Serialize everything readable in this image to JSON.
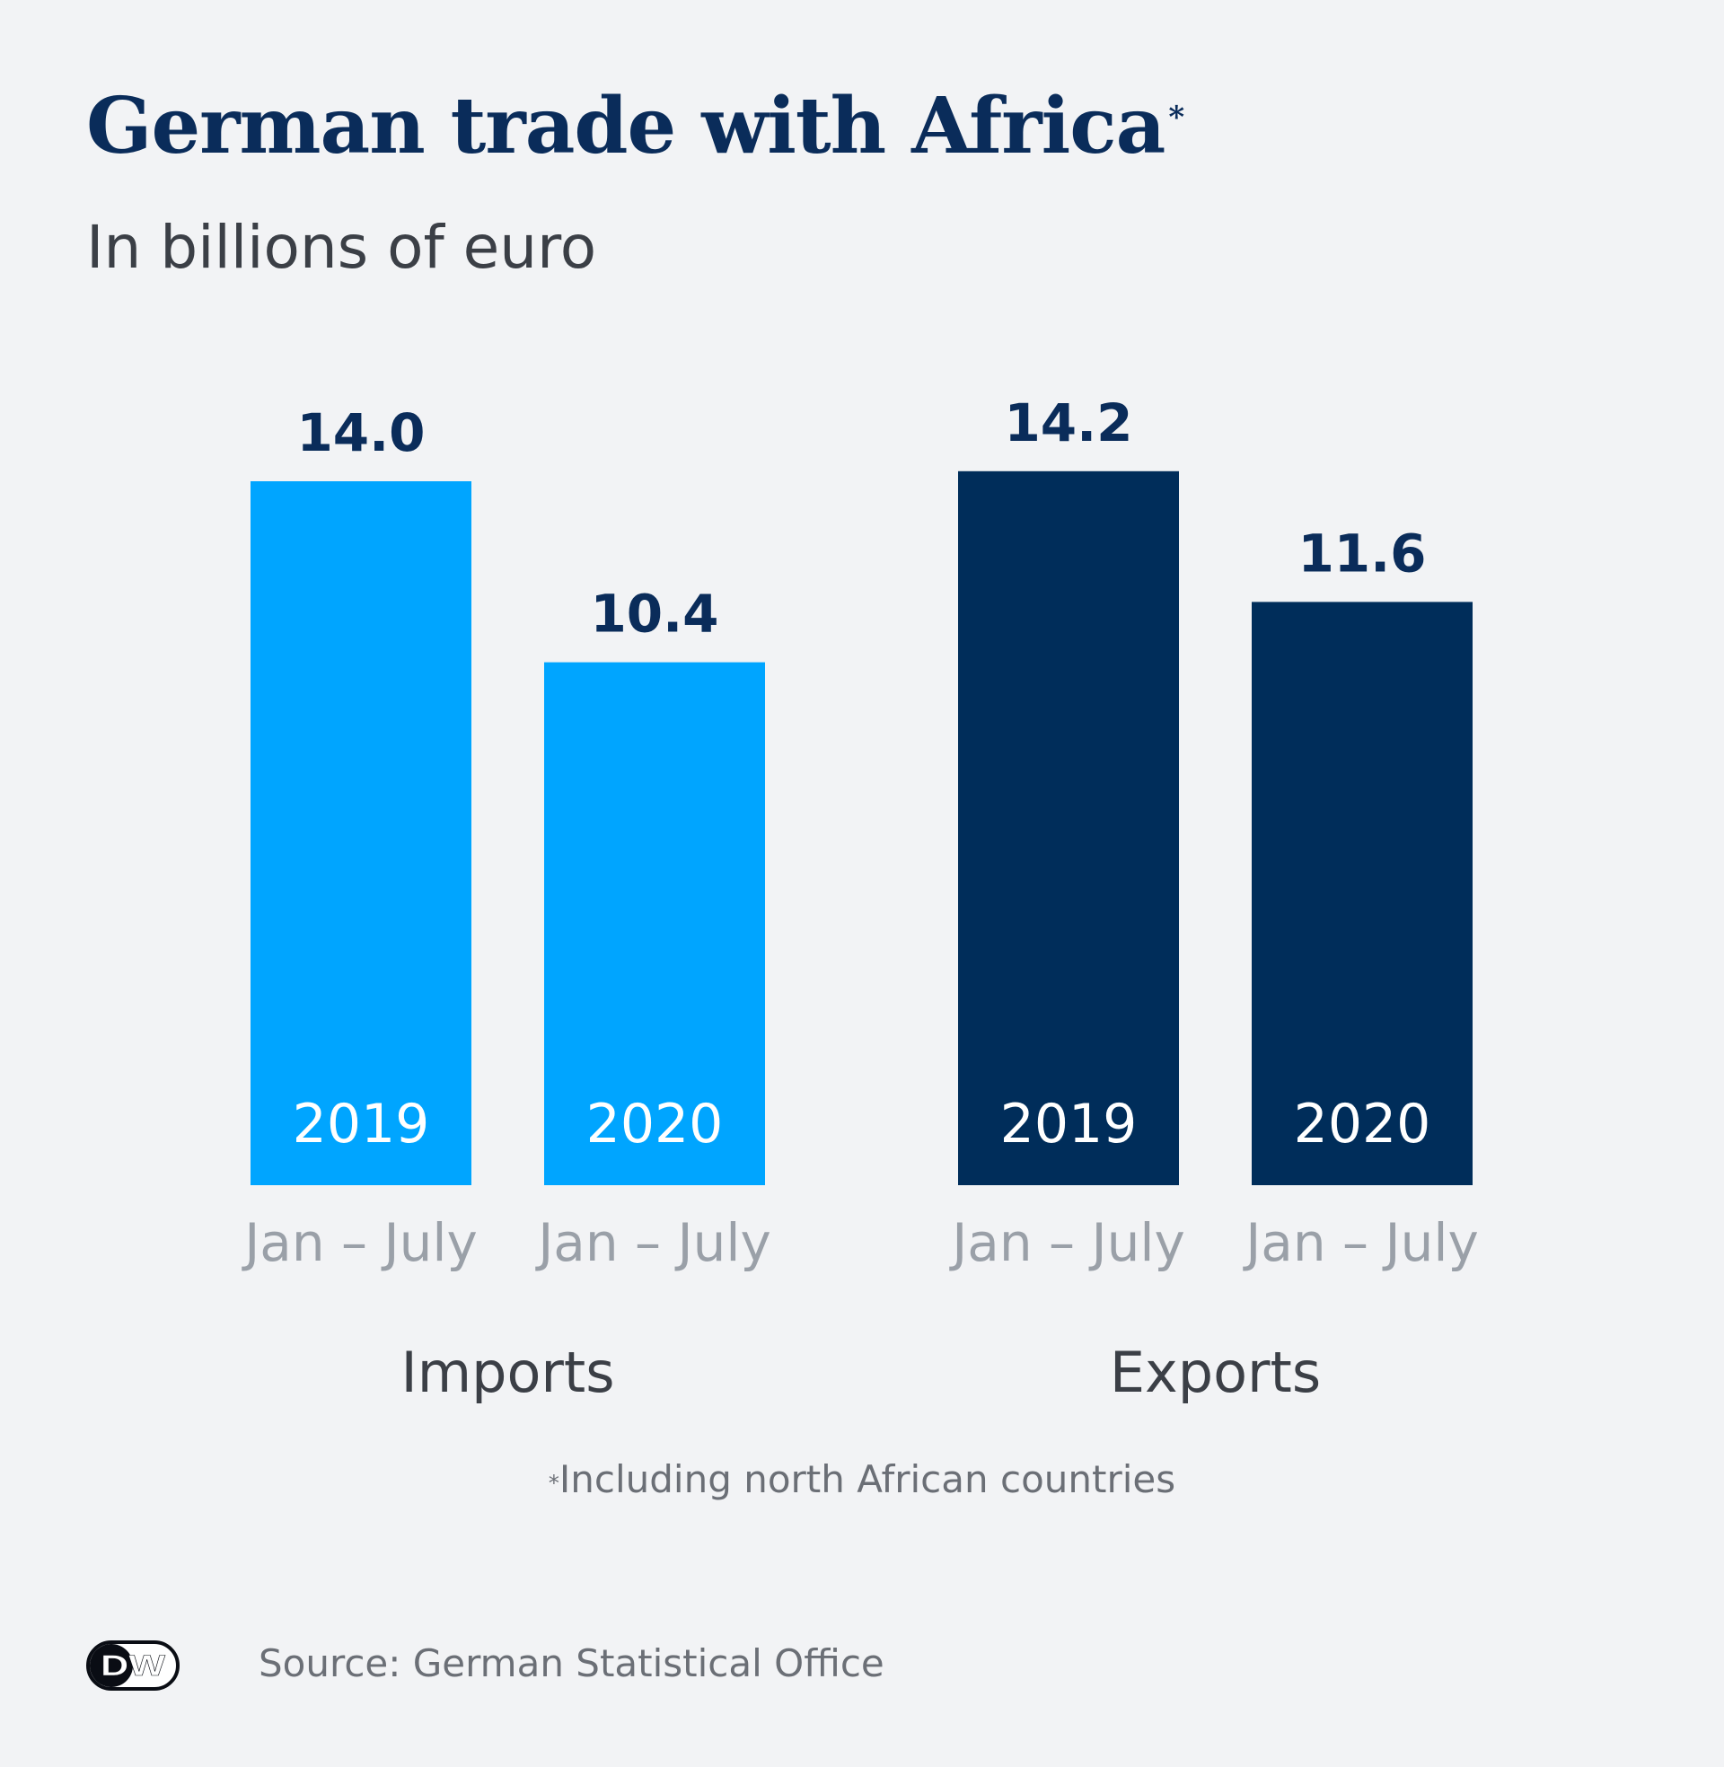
{
  "header": {
    "title": "German trade with Africa",
    "title_mark": "*",
    "subtitle": "In billions of euro"
  },
  "chart_data": {
    "type": "bar",
    "title": "German trade with Africa*",
    "subtitle": "In billions of euro",
    "groups": [
      {
        "name": "Imports",
        "color": "#00a5ff",
        "bars": [
          {
            "year": "2019",
            "period": "Jan – July",
            "value": 14.0
          },
          {
            "year": "2020",
            "period": "Jan – July",
            "value": 10.4
          }
        ]
      },
      {
        "name": "Exports",
        "color": "#002d5a",
        "bars": [
          {
            "year": "2019",
            "period": "Jan – July",
            "value": 14.2
          },
          {
            "year": "2020",
            "period": "Jan – July",
            "value": 11.6
          }
        ]
      }
    ],
    "value_format": "one decimal",
    "grid": false,
    "legend": "none"
  },
  "footnote": {
    "mark": "*",
    "text": "Including north African countries"
  },
  "footer": {
    "logo_text": "DW",
    "source": "Source: German Statistical Office"
  },
  "colors": {
    "background": "#f2f3f5",
    "title": "#0a2c5a",
    "value_label": "#0a2c5a",
    "period_label": "#9aa0a8",
    "group_label": "#3b3f46",
    "muted_text": "#6b6f76"
  }
}
